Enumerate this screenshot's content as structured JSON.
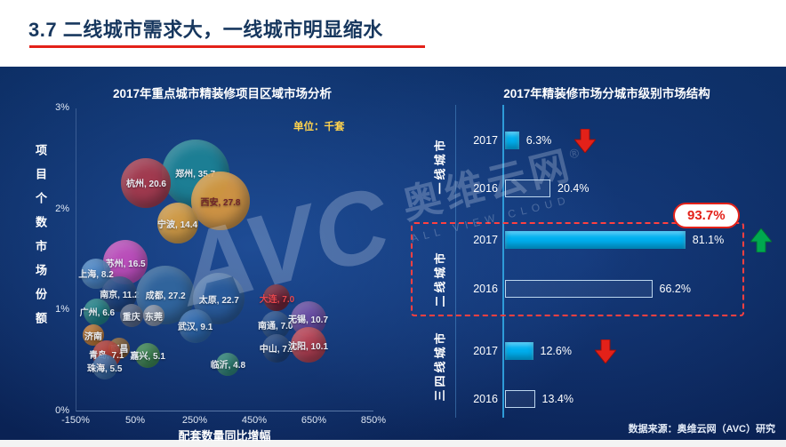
{
  "page": {
    "title": "3.7 二线城市需求大，一线城市明显缩水",
    "source": "数据来源：奥维云网（AVC）研究",
    "watermark": {
      "brand": "AVC",
      "name": "奥维云网",
      "reg": "®",
      "subtitle": "ALL VIEW CLOUD"
    }
  },
  "colors": {
    "accent_red": "#e32119",
    "accent_green": "#00a84f",
    "bar_fill": "#00b0f0",
    "panel_blue": "#0d2f66"
  },
  "chart_data": [
    {
      "type": "scatter",
      "title": "2017年重点城市精装修项目区域市场分析",
      "unit_label": "单位：千套",
      "xlabel": "配套数量同比增幅",
      "ylabel": "项目个数市场份额",
      "xlim": [
        -150,
        850
      ],
      "ylim": [
        0,
        3
      ],
      "x_ticks": [
        "-150%",
        "50%",
        "250%",
        "450%",
        "650%",
        "850%"
      ],
      "y_ticks": [
        "3%",
        "2%",
        "1%",
        "0%"
      ],
      "points": [
        {
          "city": "郑州",
          "label": "郑州, 35.7",
          "growth_pct": 250,
          "share_pct": 2.36,
          "volume_k": 35.7,
          "r": 38,
          "color": "#1d8596"
        },
        {
          "city": "杭州",
          "label": "杭州, 20.6",
          "growth_pct": 85,
          "share_pct": 2.26,
          "volume_k": 20.6,
          "r": 28,
          "color": "#b03a4a"
        },
        {
          "city": "西安",
          "label": "西安, 27.8",
          "growth_pct": 335,
          "share_pct": 2.08,
          "volume_k": 27.8,
          "r": 33,
          "color": "#e09b3d",
          "label_color": "#7a2020"
        },
        {
          "city": "宁波",
          "label": "宁波, 14.4",
          "growth_pct": 190,
          "share_pct": 1.86,
          "volume_k": 14.4,
          "r": 23,
          "color": "#e2a33f"
        },
        {
          "city": "苏州",
          "label": "苏州, 16.5",
          "growth_pct": 15,
          "share_pct": 1.47,
          "volume_k": 16.5,
          "r": 25,
          "color": "#cb4fc0"
        },
        {
          "city": "上海",
          "label": "上海, 8.2",
          "growth_pct": -84,
          "share_pct": 1.36,
          "volume_k": 8.2,
          "r": 17,
          "color": "#4f8ccd"
        },
        {
          "city": "南京",
          "label": "南京, 11.2",
          "growth_pct": -5,
          "share_pct": 1.16,
          "volume_k": 11.2,
          "r": 20,
          "color": "#1e4480"
        },
        {
          "city": "成都",
          "label": "成都, 27.2",
          "growth_pct": 150,
          "share_pct": 1.15,
          "volume_k": 27.2,
          "r": 33,
          "color": "#33689f"
        },
        {
          "city": "太原",
          "label": "太原, 22.7",
          "growth_pct": 330,
          "share_pct": 1.11,
          "volume_k": 22.7,
          "r": 29,
          "color": "#2a5c9b"
        },
        {
          "city": "大连",
          "label": "大连, 7.0",
          "growth_pct": 525,
          "share_pct": 1.12,
          "volume_k": 7.0,
          "r": 15,
          "color": "#7d2030",
          "label_color": "#ff4747"
        },
        {
          "city": "广州",
          "label": "广州, 6.6",
          "growth_pct": -80,
          "share_pct": 0.98,
          "volume_k": 6.6,
          "r": 15,
          "color": "#208a8a"
        },
        {
          "city": "重庆",
          "label": "重庆",
          "growth_pct": 35,
          "share_pct": 0.94,
          "r": 13,
          "color": "#5d6d8c"
        },
        {
          "city": "东莞",
          "label": "东莞",
          "growth_pct": 110,
          "share_pct": 0.94,
          "r": 12,
          "color": "#97a1b4"
        },
        {
          "city": "武汉",
          "label": "武汉, 9.1",
          "growth_pct": 250,
          "share_pct": 0.84,
          "volume_k": 9.1,
          "r": 19,
          "color": "#2f6bb0"
        },
        {
          "city": "南通",
          "label": "南通, 7.0",
          "growth_pct": 520,
          "share_pct": 0.85,
          "volume_k": 7.0,
          "r": 16,
          "color": "#24508f"
        },
        {
          "city": "无锡",
          "label": "无锡, 10.7",
          "growth_pct": 630,
          "share_pct": 0.91,
          "volume_k": 10.7,
          "r": 20,
          "color": "#6f4da6"
        },
        {
          "city": "济南",
          "label": "济南",
          "growth_pct": -93,
          "share_pct": 0.75,
          "r": 12,
          "color": "#d9822b"
        },
        {
          "city": "南昌",
          "label": "南昌",
          "growth_pct": -5,
          "share_pct": 0.62,
          "r": 12,
          "color": "#96662e"
        },
        {
          "city": "青岛",
          "label": "青岛, 7.1",
          "growth_pct": -49,
          "share_pct": 0.56,
          "volume_k": 7.1,
          "r": 16,
          "color": "#c23b2e"
        },
        {
          "city": "嘉兴",
          "label": "嘉兴, 5.1",
          "growth_pct": 90,
          "share_pct": 0.55,
          "volume_k": 5.1,
          "r": 14,
          "color": "#41914f"
        },
        {
          "city": "珠海",
          "label": "珠海, 5.5",
          "growth_pct": -55,
          "share_pct": 0.43,
          "volume_k": 5.5,
          "r": 14,
          "color": "#3a6fae"
        },
        {
          "city": "中山",
          "label": "中山, 7.1",
          "growth_pct": 525,
          "share_pct": 0.62,
          "volume_k": 7.1,
          "r": 16,
          "color": "#1e4480"
        },
        {
          "city": "临沂",
          "label": "临沂, 4.8",
          "growth_pct": 360,
          "share_pct": 0.46,
          "volume_k": 4.8,
          "r": 13,
          "color": "#2f8f78"
        },
        {
          "city": "沈阳",
          "label": "沈阳, 10.1",
          "growth_pct": 630,
          "share_pct": 0.65,
          "volume_k": 10.1,
          "r": 20,
          "color": "#c2404e"
        }
      ]
    },
    {
      "type": "bar",
      "title": "2017年精装修市场分城市级别市场结构",
      "xlim": [
        0,
        100
      ],
      "highlight": {
        "label": "93.7%"
      },
      "groups": [
        {
          "name": "一线城市",
          "rows": [
            {
              "year": "2017",
              "value": 6.3,
              "label": "6.3%",
              "style": "filled",
              "trend": "down"
            },
            {
              "year": "2016",
              "value": 20.4,
              "label": "20.4%",
              "style": "outline"
            }
          ]
        },
        {
          "name": "二线城市",
          "rows": [
            {
              "year": "2017",
              "value": 81.1,
              "label": "81.1%",
              "style": "filled",
              "trend": "up"
            },
            {
              "year": "2016",
              "value": 66.2,
              "label": "66.2%",
              "style": "outline"
            }
          ]
        },
        {
          "name": "三四线城市",
          "rows": [
            {
              "year": "2017",
              "value": 12.6,
              "label": "12.6%",
              "style": "filled",
              "trend": "down"
            },
            {
              "year": "2016",
              "value": 13.4,
              "label": "13.4%",
              "style": "outline"
            }
          ]
        }
      ]
    }
  ]
}
